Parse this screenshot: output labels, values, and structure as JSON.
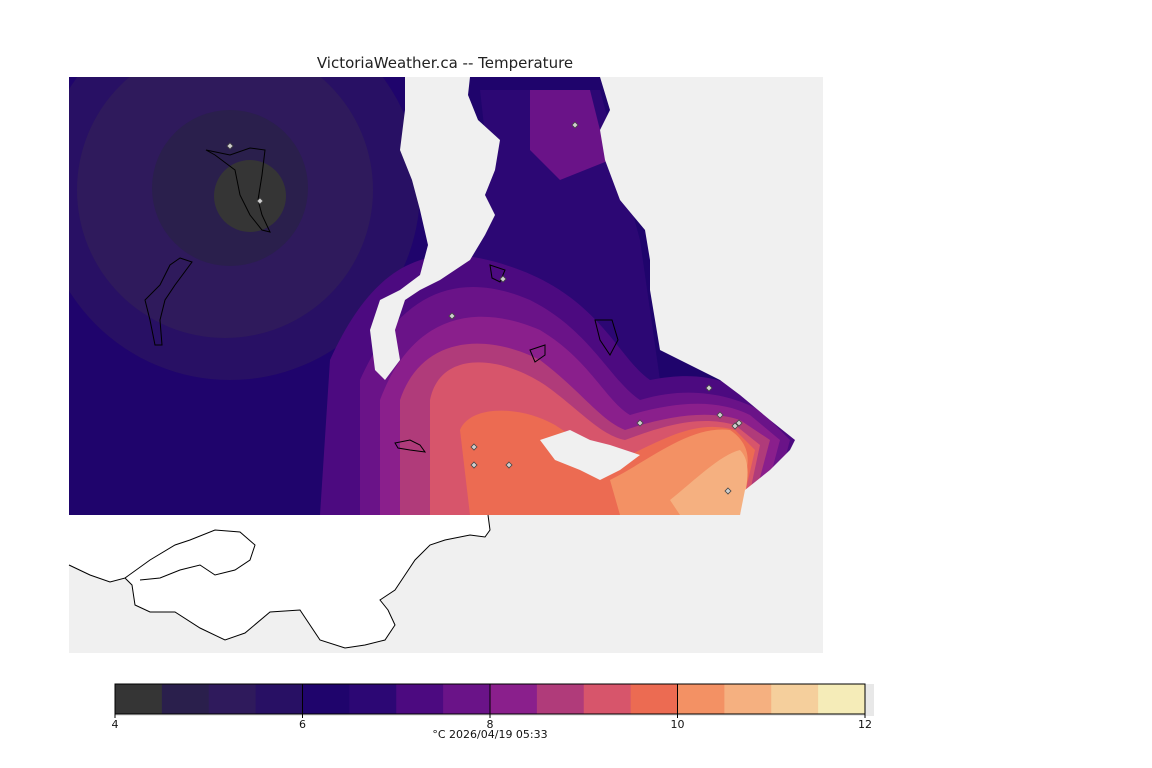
{
  "title": "VictoriaWeather.ca -- Temperature",
  "colorbar": {
    "min": 4,
    "max": 12,
    "tick_labels": [
      "4",
      "6",
      "8",
      "10",
      "12"
    ],
    "colors": [
      "#353535",
      "#2a1f4c",
      "#2f1a5c",
      "#281064",
      "#1f046c",
      "#2c0774",
      "#4c0a80",
      "#6a1388",
      "#8a1f8c",
      "#b03b7a",
      "#d7556b",
      "#ec6b52",
      "#f39164",
      "#f5b080",
      "#f5cf9c",
      "#f5ecb8"
    ],
    "unit_and_time": "°C  2026/04/19 05:33"
  },
  "map": {
    "background_color": "#f0f0f0",
    "land_color": "#ffffff",
    "station_count": 14
  }
}
